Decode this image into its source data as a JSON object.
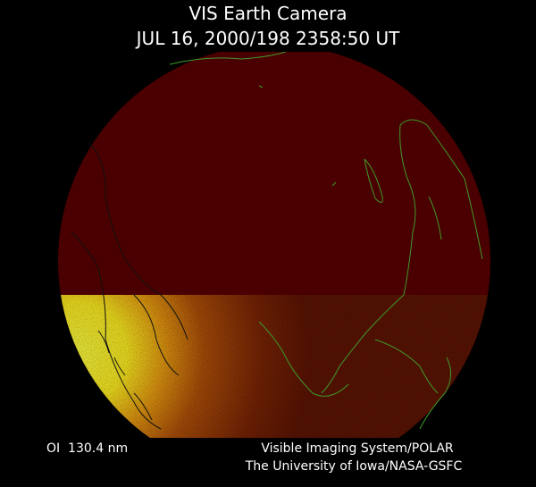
{
  "header": {
    "title": "VIS Earth Camera",
    "timestamp": "JUL 16, 2000/198 2358:50 UT"
  },
  "footer": {
    "wavelength": "OI  130.4 nm",
    "credits": [
      "Visible Imaging System/POLAR",
      "The University of Iowa/NASA-GSFC"
    ]
  }
}
